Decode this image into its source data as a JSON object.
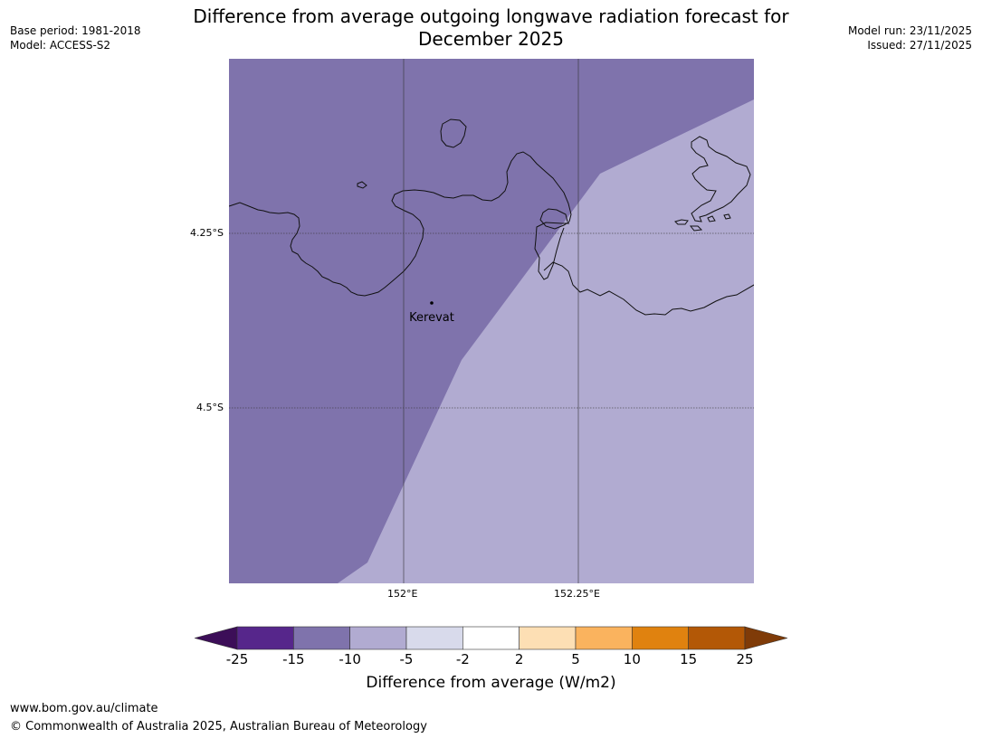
{
  "header": {
    "base_period": "Base period: 1981-2018",
    "model": "Model: ACCESS-S2",
    "model_run": "Model run: 23/11/2025",
    "issued": "Issued: 27/11/2025",
    "title_line1": "Difference from average outgoing longwave radiation forecast for",
    "title_line2": "December 2025"
  },
  "map": {
    "place_label": "Kerevat",
    "lat_labels": [
      "4.25°S",
      "4.5°S"
    ],
    "lon_labels": [
      "152°E",
      "152.25°E"
    ],
    "colors": {
      "band_minus15_minus10": "#7f73ac",
      "band_minus10_minus5": "#b1abd1"
    }
  },
  "colorbar": {
    "ticks": [
      "-25",
      "-15",
      "-10",
      "-5",
      "-2",
      "2",
      "5",
      "10",
      "15",
      "25"
    ],
    "colors": [
      "#3c0e58",
      "#56268b",
      "#7f73ac",
      "#b1abd1",
      "#d8daeb",
      "#ffffff",
      "#fddfb4",
      "#fab35e",
      "#e0820f",
      "#b35806",
      "#7f3b08"
    ],
    "label": "Difference from average (W/m2)"
  },
  "footer": {
    "url": "www.bom.gov.au/climate",
    "copyright": "© Commonwealth of Australia 2025, Australian Bureau of Meteorology"
  }
}
